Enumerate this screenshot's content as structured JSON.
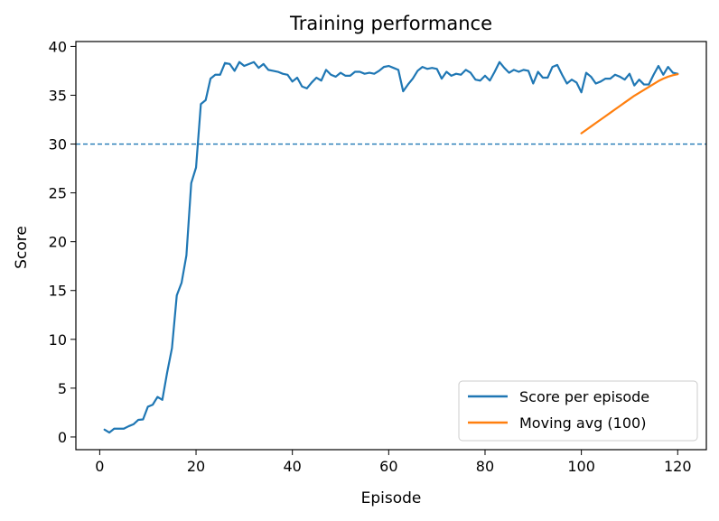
{
  "chart_data": {
    "type": "line",
    "title": "Training performance",
    "xlabel": "Episode",
    "ylabel": "Score",
    "xlim": [
      -4.95,
      125.95
    ],
    "ylim": [
      -1.3,
      40.5
    ],
    "xticks": [
      0,
      20,
      40,
      60,
      80,
      100,
      120
    ],
    "yticks": [
      0,
      5,
      10,
      15,
      20,
      25,
      30,
      35,
      40
    ],
    "grid": false,
    "legend_position": "lower-right",
    "threshold": {
      "y": 30,
      "style": "dashed",
      "color": "#1f77b4"
    },
    "series": [
      {
        "name": "Score per episode",
        "color": "#1f77b4",
        "x": [
          1,
          2,
          3,
          4,
          5,
          6,
          7,
          8,
          9,
          10,
          11,
          12,
          13,
          14,
          15,
          16,
          17,
          18,
          19,
          20,
          21,
          22,
          23,
          24,
          25,
          26,
          27,
          28,
          29,
          30,
          31,
          32,
          33,
          34,
          35,
          36,
          37,
          38,
          39,
          40,
          41,
          42,
          43,
          44,
          45,
          46,
          47,
          48,
          49,
          50,
          51,
          52,
          53,
          54,
          55,
          56,
          57,
          58,
          59,
          60,
          61,
          62,
          63,
          64,
          65,
          66,
          67,
          68,
          69,
          70,
          71,
          72,
          73,
          74,
          75,
          76,
          77,
          78,
          79,
          80,
          81,
          82,
          83,
          84,
          85,
          86,
          87,
          88,
          89,
          90,
          91,
          92,
          93,
          94,
          95,
          96,
          97,
          98,
          99,
          100,
          101,
          102,
          103,
          104,
          105,
          106,
          107,
          108,
          109,
          110,
          111,
          112,
          113,
          114,
          115,
          116,
          117,
          118,
          119,
          120
        ],
        "values": [
          0.75,
          0.45,
          0.85,
          0.85,
          0.85,
          1.1,
          1.3,
          1.75,
          1.8,
          3.1,
          3.3,
          4.1,
          3.8,
          6.6,
          9.1,
          14.5,
          15.8,
          18.6,
          26.0,
          27.6,
          34.1,
          34.5,
          36.7,
          37.1,
          37.1,
          38.3,
          38.2,
          37.5,
          38.4,
          38.0,
          38.2,
          38.4,
          37.8,
          38.2,
          37.6,
          37.5,
          37.4,
          37.2,
          37.1,
          36.4,
          36.8,
          35.9,
          35.7,
          36.3,
          36.8,
          36.5,
          37.6,
          37.1,
          36.9,
          37.3,
          37.0,
          37.0,
          37.4,
          37.4,
          37.2,
          37.3,
          37.2,
          37.5,
          37.9,
          38.0,
          37.8,
          37.6,
          35.4,
          36.1,
          36.7,
          37.5,
          37.9,
          37.7,
          37.8,
          37.7,
          36.7,
          37.4,
          37.0,
          37.2,
          37.1,
          37.6,
          37.3,
          36.6,
          36.5,
          37.0,
          36.5,
          37.4,
          38.4,
          37.8,
          37.3,
          37.6,
          37.4,
          37.6,
          37.5,
          36.2,
          37.4,
          36.8,
          36.8,
          37.9,
          38.1,
          37.1,
          36.2,
          36.6,
          36.3,
          35.3,
          37.3,
          36.9,
          36.2,
          36.4,
          36.7,
          36.7,
          37.1,
          36.9,
          36.6,
          37.2,
          36.0,
          36.6,
          36.1,
          36.1,
          37.1,
          38.0,
          37.1,
          37.9,
          37.3,
          37.2
        ]
      },
      {
        "name": "Moving avg (100)",
        "color": "#ff7f0e",
        "x": [
          100,
          101,
          102,
          103,
          104,
          105,
          106,
          107,
          108,
          109,
          110,
          111,
          112,
          113,
          114,
          115,
          116,
          117,
          118,
          119,
          120
        ],
        "values": [
          31.1,
          31.45,
          31.8,
          32.15,
          32.5,
          32.85,
          33.2,
          33.55,
          33.9,
          34.25,
          34.6,
          34.95,
          35.25,
          35.55,
          35.85,
          36.15,
          36.45,
          36.7,
          36.9,
          37.05,
          37.15
        ]
      }
    ]
  }
}
